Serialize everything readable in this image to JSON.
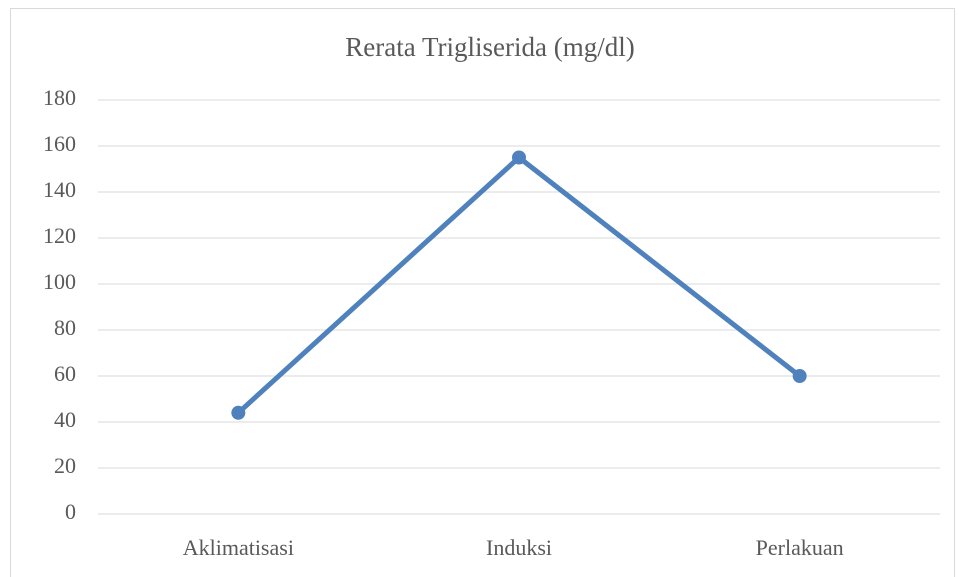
{
  "chart_data": {
    "type": "line",
    "title": "Rerata Trigliserida (mg/dl)",
    "categories": [
      "Aklimatisasi",
      "Induksi",
      "Perlakuan"
    ],
    "series": [
      {
        "name": "Rerata Trigliserida",
        "color": "#4f81bd",
        "values": [
          44,
          155,
          60
        ]
      }
    ],
    "ylim": [
      0,
      180
    ],
    "yticks": [
      0,
      20,
      40,
      60,
      80,
      100,
      120,
      140,
      160,
      180
    ],
    "grid": true
  }
}
